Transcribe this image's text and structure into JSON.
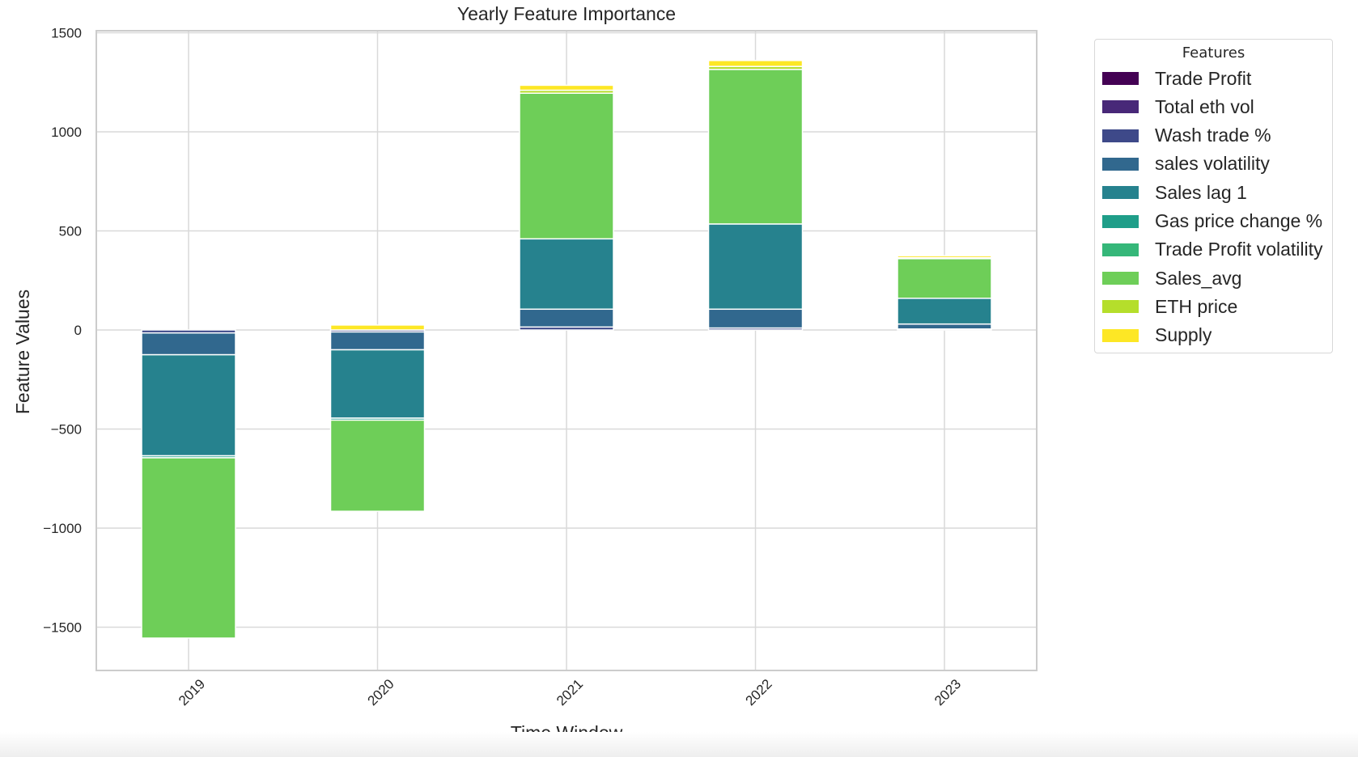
{
  "chart_data": {
    "type": "bar",
    "stacked": true,
    "title": "Yearly Feature Importance",
    "xlabel": "Time Window",
    "ylabel": "Feature Values",
    "categories": [
      "2019",
      "2020",
      "2021",
      "2022",
      "2023"
    ],
    "ylim": [
      -1720,
      1500
    ],
    "yticks": [
      1500,
      1000,
      500,
      0,
      -500,
      -1000,
      -1500
    ],
    "ytick_labels": [
      "1500",
      "1000",
      "500",
      "0",
      "−500",
      "−1000",
      "−1500"
    ],
    "grid": true,
    "legend": {
      "title": "Features",
      "placement": "outside-right"
    },
    "series": [
      {
        "name": "Trade Profit",
        "color": "#440154",
        "values": [
          0,
          0,
          0,
          0,
          0
        ]
      },
      {
        "name": "Total eth vol",
        "color": "#482878",
        "values": [
          0,
          0,
          0,
          0,
          0
        ]
      },
      {
        "name": "Wash trade %",
        "color": "#3e4989",
        "values": [
          -15,
          -10,
          15,
          10,
          5
        ]
      },
      {
        "name": "sales volatility",
        "color": "#31688e",
        "values": [
          -110,
          -90,
          90,
          95,
          25
        ]
      },
      {
        "name": "Sales lag 1",
        "color": "#26828e",
        "values": [
          -510,
          -345,
          355,
          430,
          130
        ]
      },
      {
        "name": "Gas price change %",
        "color": "#1f9e89",
        "values": [
          -10,
          -10,
          0,
          0,
          0
        ]
      },
      {
        "name": "Trade Profit volatility",
        "color": "#35b779",
        "values": [
          0,
          0,
          0,
          0,
          0
        ]
      },
      {
        "name": "Sales_avg",
        "color": "#6ece58",
        "values": [
          -910,
          -460,
          735,
          780,
          200
        ]
      },
      {
        "name": "ETH price",
        "color": "#b5de2b",
        "values": [
          0,
          0,
          15,
          15,
          5
        ]
      },
      {
        "name": "Supply",
        "color": "#fde725",
        "values": [
          0,
          25,
          25,
          30,
          10
        ]
      }
    ]
  }
}
